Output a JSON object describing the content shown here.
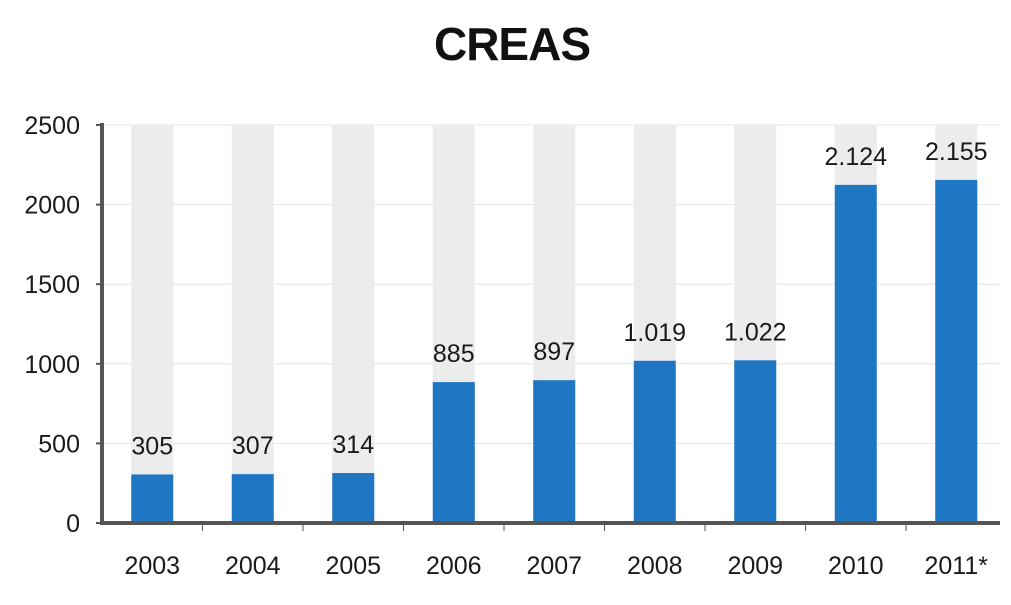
{
  "chart_data": {
    "type": "bar",
    "title": "CREAS",
    "xlabel": "",
    "ylabel": "",
    "categories": [
      "2003",
      "2004",
      "2005",
      "2006",
      "2007",
      "2008",
      "2009",
      "2010",
      "2011*"
    ],
    "values": [
      305,
      307,
      314,
      885,
      897,
      1019,
      1022,
      2124,
      2155
    ],
    "value_labels": [
      "305",
      "307",
      "314",
      "885",
      "897",
      "1.019",
      "1.022",
      "2.124",
      "2.155"
    ],
    "yticks": [
      "0",
      "500",
      "1000",
      "1500",
      "2000",
      "2500"
    ],
    "ylim": [
      0,
      2500
    ],
    "grid": true,
    "legend": "none",
    "colors": {
      "bar": "#1f77c4",
      "track": "#ececec",
      "axis": "#555555",
      "grid": "#e6e6e6"
    }
  }
}
